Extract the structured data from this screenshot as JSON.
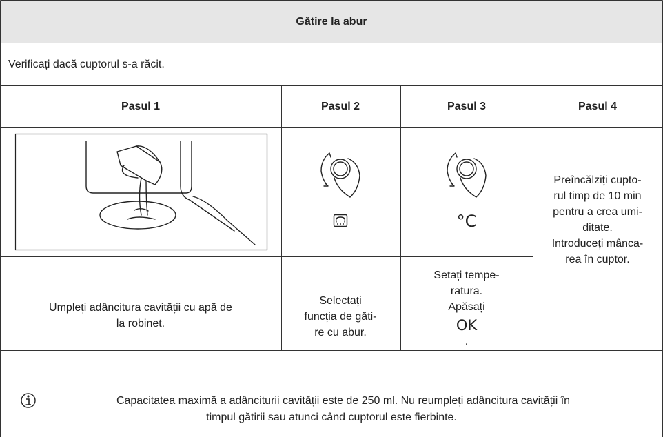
{
  "header": {
    "title": "Gătire la abur"
  },
  "note_top": "Verificați dacă cuptorul s-a răcit.",
  "steps": [
    {
      "title": "Pasul 1",
      "text": [
        "Umpleți adâncitura cavității cu apă de",
        "la robinet."
      ]
    },
    {
      "title": "Pasul 2",
      "text": [
        "Selectați",
        "funcția de găti-",
        "re cu abur."
      ]
    },
    {
      "title": "Pasul 3",
      "icon_label": "°C",
      "text": [
        "Setați tempe-",
        "ratura.",
        "Apăsați"
      ],
      "button": "OK",
      "text_end": "."
    },
    {
      "title": "Pasul 4",
      "text": [
        "Preîncălziți cupto-",
        "rul timp de 10 min",
        "pentru a crea umi-",
        "ditate.",
        "Introduceți mânca-",
        "rea în cuptor."
      ]
    }
  ],
  "info": {
    "text": [
      "Capacitatea maximă a adânciturii cavității este de 250 ml. Nu reumpleți adâncitura cavității în",
      "timpul gătirii sau atunci când cuptorul este fierbinte."
    ]
  }
}
